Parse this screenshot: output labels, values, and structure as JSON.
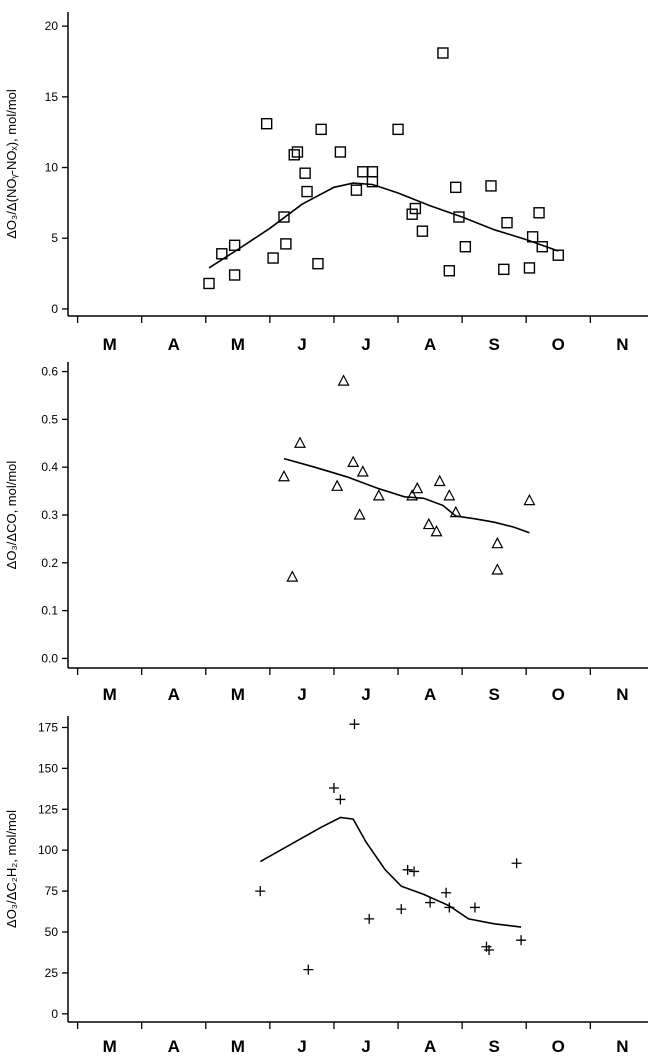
{
  "chart_data": [
    {
      "type": "scatter",
      "ylabel": "ΔO₃/Δ(NOᵧ-NOₓ), mol/mol",
      "ylim": [
        -0.5,
        21
      ],
      "yticks": [
        0,
        5,
        10,
        15,
        20
      ],
      "ytick_labels": [
        "0",
        "5",
        "10",
        "15",
        "20"
      ],
      "xlim": [
        2.35,
        11.4
      ],
      "month_labels": [
        "M",
        "A",
        "M",
        "J",
        "J",
        "A",
        "S",
        "O",
        "N"
      ],
      "month_positions": [
        3,
        4,
        5,
        6,
        7,
        8,
        9,
        10,
        11
      ],
      "marker": "square",
      "points": [
        {
          "x": 4.55,
          "y": 1.8
        },
        {
          "x": 4.75,
          "y": 3.9
        },
        {
          "x": 4.95,
          "y": 4.5
        },
        {
          "x": 4.95,
          "y": 2.4
        },
        {
          "x": 5.55,
          "y": 3.6
        },
        {
          "x": 5.72,
          "y": 6.5
        },
        {
          "x": 5.75,
          "y": 4.6
        },
        {
          "x": 5.45,
          "y": 13.1
        },
        {
          "x": 5.88,
          "y": 10.9
        },
        {
          "x": 5.93,
          "y": 11.1
        },
        {
          "x": 6.05,
          "y": 9.6
        },
        {
          "x": 6.08,
          "y": 8.3
        },
        {
          "x": 6.25,
          "y": 3.2
        },
        {
          "x": 6.3,
          "y": 12.7
        },
        {
          "x": 6.6,
          "y": 11.1
        },
        {
          "x": 6.85,
          "y": 8.4
        },
        {
          "x": 6.95,
          "y": 9.7
        },
        {
          "x": 7.1,
          "y": 9.7
        },
        {
          "x": 7.1,
          "y": 9.0
        },
        {
          "x": 7.5,
          "y": 12.7
        },
        {
          "x": 7.72,
          "y": 6.7
        },
        {
          "x": 7.77,
          "y": 7.1
        },
        {
          "x": 7.88,
          "y": 5.5
        },
        {
          "x": 8.2,
          "y": 18.1
        },
        {
          "x": 8.3,
          "y": 2.7
        },
        {
          "x": 8.4,
          "y": 8.6
        },
        {
          "x": 8.45,
          "y": 6.5
        },
        {
          "x": 8.55,
          "y": 4.4
        },
        {
          "x": 8.95,
          "y": 8.7
        },
        {
          "x": 9.15,
          "y": 2.8
        },
        {
          "x": 9.2,
          "y": 6.1
        },
        {
          "x": 9.55,
          "y": 2.9
        },
        {
          "x": 9.6,
          "y": 5.1
        },
        {
          "x": 9.7,
          "y": 6.8
        },
        {
          "x": 9.75,
          "y": 4.4
        },
        {
          "x": 10.0,
          "y": 3.8
        }
      ],
      "trend": [
        {
          "x": 4.55,
          "y": 2.9
        },
        {
          "x": 5.0,
          "y": 4.2
        },
        {
          "x": 5.5,
          "y": 5.7
        },
        {
          "x": 6.0,
          "y": 7.4
        },
        {
          "x": 6.5,
          "y": 8.6
        },
        {
          "x": 6.8,
          "y": 8.9
        },
        {
          "x": 7.1,
          "y": 8.8
        },
        {
          "x": 7.5,
          "y": 8.2
        },
        {
          "x": 8.0,
          "y": 7.3
        },
        {
          "x": 8.5,
          "y": 6.5
        },
        {
          "x": 9.0,
          "y": 5.6
        },
        {
          "x": 9.5,
          "y": 4.9
        },
        {
          "x": 10.0,
          "y": 4.1
        }
      ]
    },
    {
      "type": "scatter",
      "ylabel": "ΔO₃/ΔCO, mol/mol",
      "ylim": [
        -0.02,
        0.62
      ],
      "yticks": [
        0.0,
        0.1,
        0.2,
        0.3,
        0.4,
        0.5,
        0.6
      ],
      "ytick_labels": [
        "0.0",
        "0.1",
        "0.2",
        "0.3",
        "0.4",
        "0.5",
        "0.6"
      ],
      "xlim": [
        2.35,
        11.4
      ],
      "month_labels": [
        "M",
        "A",
        "M",
        "J",
        "J",
        "A",
        "S",
        "O",
        "N"
      ],
      "month_positions": [
        3,
        4,
        5,
        6,
        7,
        8,
        9,
        10,
        11
      ],
      "marker": "triangle",
      "points": [
        {
          "x": 5.72,
          "y": 0.38
        },
        {
          "x": 5.85,
          "y": 0.17
        },
        {
          "x": 5.97,
          "y": 0.45
        },
        {
          "x": 6.55,
          "y": 0.36
        },
        {
          "x": 6.65,
          "y": 0.58
        },
        {
          "x": 6.8,
          "y": 0.41
        },
        {
          "x": 6.9,
          "y": 0.3
        },
        {
          "x": 6.95,
          "y": 0.39
        },
        {
          "x": 7.2,
          "y": 0.34
        },
        {
          "x": 7.72,
          "y": 0.34
        },
        {
          "x": 7.8,
          "y": 0.355
        },
        {
          "x": 7.98,
          "y": 0.28
        },
        {
          "x": 8.1,
          "y": 0.265
        },
        {
          "x": 8.15,
          "y": 0.37
        },
        {
          "x": 8.3,
          "y": 0.34
        },
        {
          "x": 8.4,
          "y": 0.305
        },
        {
          "x": 9.05,
          "y": 0.24
        },
        {
          "x": 9.05,
          "y": 0.185
        },
        {
          "x": 9.55,
          "y": 0.33
        }
      ],
      "trend": [
        {
          "x": 5.72,
          "y": 0.418
        },
        {
          "x": 6.2,
          "y": 0.4
        },
        {
          "x": 6.7,
          "y": 0.38
        },
        {
          "x": 7.2,
          "y": 0.355
        },
        {
          "x": 7.6,
          "y": 0.338
        },
        {
          "x": 7.9,
          "y": 0.335
        },
        {
          "x": 8.2,
          "y": 0.32
        },
        {
          "x": 8.4,
          "y": 0.298
        },
        {
          "x": 8.7,
          "y": 0.292
        },
        {
          "x": 9.0,
          "y": 0.285
        },
        {
          "x": 9.3,
          "y": 0.275
        },
        {
          "x": 9.55,
          "y": 0.263
        }
      ]
    },
    {
      "type": "scatter",
      "ylabel": "ΔO₃/ΔC₂H₂, mol/mol",
      "ylim": [
        -5,
        182
      ],
      "yticks": [
        0,
        25,
        50,
        75,
        100,
        125,
        150,
        175
      ],
      "ytick_labels": [
        "0",
        "25",
        "50",
        "75",
        "100",
        "125",
        "150",
        "175"
      ],
      "xlim": [
        2.35,
        11.4
      ],
      "month_labels": [
        "M",
        "A",
        "M",
        "J",
        "J",
        "A",
        "S",
        "O",
        "N"
      ],
      "month_positions": [
        3,
        4,
        5,
        6,
        7,
        8,
        9,
        10,
        11
      ],
      "marker": "plus",
      "points": [
        {
          "x": 5.35,
          "y": 75
        },
        {
          "x": 6.1,
          "y": 27
        },
        {
          "x": 6.5,
          "y": 138
        },
        {
          "x": 6.6,
          "y": 131
        },
        {
          "x": 6.82,
          "y": 177
        },
        {
          "x": 7.05,
          "y": 58
        },
        {
          "x": 7.55,
          "y": 64
        },
        {
          "x": 7.65,
          "y": 88
        },
        {
          "x": 7.75,
          "y": 87
        },
        {
          "x": 8.0,
          "y": 68
        },
        {
          "x": 8.25,
          "y": 74
        },
        {
          "x": 8.3,
          "y": 65
        },
        {
          "x": 8.7,
          "y": 65
        },
        {
          "x": 8.88,
          "y": 41
        },
        {
          "x": 8.92,
          "y": 39
        },
        {
          "x": 9.35,
          "y": 92
        },
        {
          "x": 9.42,
          "y": 45
        }
      ],
      "trend": [
        {
          "x": 5.35,
          "y": 93
        },
        {
          "x": 5.8,
          "y": 103
        },
        {
          "x": 6.3,
          "y": 114
        },
        {
          "x": 6.6,
          "y": 120
        },
        {
          "x": 6.8,
          "y": 119
        },
        {
          "x": 7.0,
          "y": 105
        },
        {
          "x": 7.3,
          "y": 88
        },
        {
          "x": 7.55,
          "y": 78
        },
        {
          "x": 7.9,
          "y": 73
        },
        {
          "x": 8.3,
          "y": 66
        },
        {
          "x": 8.6,
          "y": 58
        },
        {
          "x": 9.0,
          "y": 55
        },
        {
          "x": 9.42,
          "y": 53
        }
      ]
    }
  ]
}
